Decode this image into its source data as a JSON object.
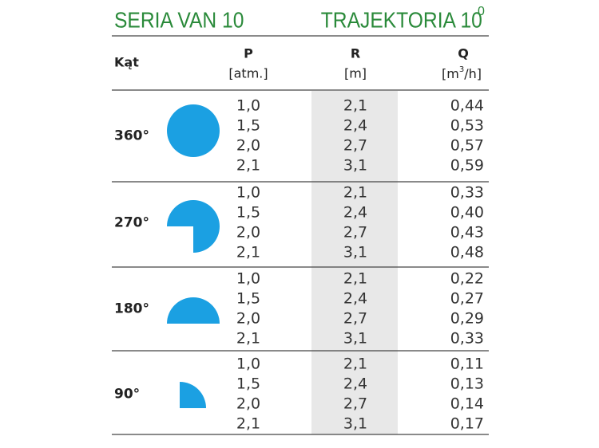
{
  "header": {
    "left_title": "SERIA VAN 10",
    "right_title": "TRAJEKTORIA 10",
    "right_title_sup": "0"
  },
  "columns": {
    "angle": "Kąt",
    "p": "P",
    "p_unit": "[atm.]",
    "r": "R",
    "r_unit": "[m]",
    "q": "Q",
    "q_unit_a": "[m",
    "q_unit_sup": "3",
    "q_unit_b": "/h]"
  },
  "groups": [
    {
      "angle": "360°",
      "rows": [
        [
          "1,0",
          "2,1",
          "0,44"
        ],
        [
          "1,5",
          "2,4",
          "0,53"
        ],
        [
          "2,0",
          "2,7",
          "0,57"
        ],
        [
          "2,1",
          "3,1",
          "0,59"
        ]
      ]
    },
    {
      "angle": "270°",
      "rows": [
        [
          "1,0",
          "2,1",
          "0,33"
        ],
        [
          "1,5",
          "2,4",
          "0,40"
        ],
        [
          "2,0",
          "2,7",
          "0,43"
        ],
        [
          "2,1",
          "3,1",
          "0,48"
        ]
      ]
    },
    {
      "angle": "180°",
      "rows": [
        [
          "1,0",
          "2,1",
          "0,22"
        ],
        [
          "1,5",
          "2,4",
          "0,27"
        ],
        [
          "2,0",
          "2,7",
          "0,29"
        ],
        [
          "2,1",
          "3,1",
          "0,33"
        ]
      ]
    },
    {
      "angle": "90°",
      "rows": [
        [
          "1,0",
          "2,1",
          "0,11"
        ],
        [
          "1,5",
          "2,4",
          "0,13"
        ],
        [
          "2,0",
          "2,7",
          "0,14"
        ],
        [
          "2,1",
          "3,1",
          "0,17"
        ]
      ]
    }
  ]
}
